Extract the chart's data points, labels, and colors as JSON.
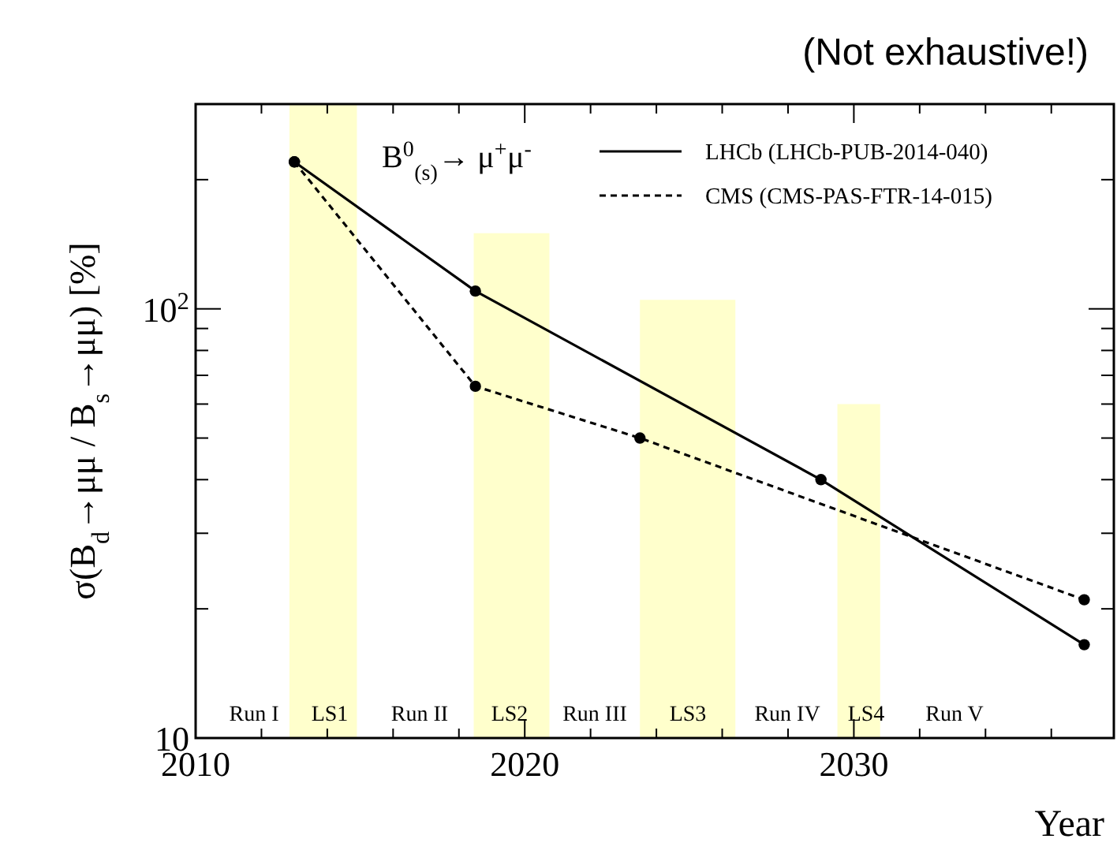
{
  "chart_data": {
    "type": "line",
    "title": "(Not exhaustive!)",
    "xlabel": "Year",
    "ylabel": "σ(B$_{d}$→μμ / B$_{s}$→μμ) [%]",
    "log": "y",
    "legend": "top right",
    "xlim": [
      2010,
      2037.9
    ],
    "ylim": [
      10,
      300
    ],
    "xticks": [
      2010,
      {
        "value": 2012,
        "label": null
      },
      {
        "value": 2014,
        "label": null
      },
      {
        "value": 2016,
        "label": null
      },
      {
        "value": 2018,
        "label": null
      },
      2020,
      {
        "value": 2022,
        "label": null
      },
      {
        "value": 2024,
        "label": null
      },
      {
        "value": 2026,
        "label": null
      },
      {
        "value": 2028,
        "label": null
      },
      2030,
      {
        "value": 2032,
        "label": null
      },
      {
        "value": 2034,
        "label": null
      },
      {
        "value": 2036,
        "label": null
      }
    ],
    "yticks": [
      10,
      {
        "value": 20,
        "label": null
      },
      {
        "value": 30,
        "label": null
      },
      {
        "value": 40,
        "label": null
      },
      {
        "value": 50,
        "label": null
      },
      {
        "value": 60,
        "label": null
      },
      {
        "value": 70,
        "label": null
      },
      {
        "value": 80,
        "label": null
      },
      {
        "value": 90,
        "label": null
      },
      {
        "value": 100,
        "label": "10$^{2}$"
      },
      {
        "value": 200,
        "label": null
      },
      {
        "value": 300,
        "label": null
      }
    ],
    "series": [
      {
        "type": "area",
        "color": "#ffffcc",
        "x": [
          2012.85,
          2014.9,
          2015,
          2018.45,
          2020.75,
          2021,
          2023.5,
          2026.4,
          2027,
          2029.5,
          2030.8
        ],
        "values": [
          300,
          300,
          null,
          150,
          150,
          null,
          105,
          105,
          null,
          60,
          60
        ]
      },
      {
        "name": "LHCb (LHCb-PUB-2014-040)",
        "color": "#000000",
        "line_style": "solid",
        "marker": "circle",
        "x": [
          2013,
          2018.5,
          2029,
          2037
        ],
        "values": [
          220,
          110,
          40,
          16.5
        ]
      },
      {
        "name": "CMS (CMS-PAS-FTR-14-015)",
        "color": "#000000",
        "line_style": "dashed",
        "marker": "circle",
        "x": [
          2013,
          2018.5,
          2023.5,
          2037
        ],
        "values": [
          220,
          66,
          50,
          21
        ]
      }
    ],
    "annotations": [
      "B$^{0}$$_{(s)}$→ μ$^{+}$μ$^{-}$",
      "Run I",
      "LS1",
      "Run II",
      "LS2",
      "Run III",
      "LS3",
      "Run IV",
      "LS4",
      "Run V"
    ]
  }
}
